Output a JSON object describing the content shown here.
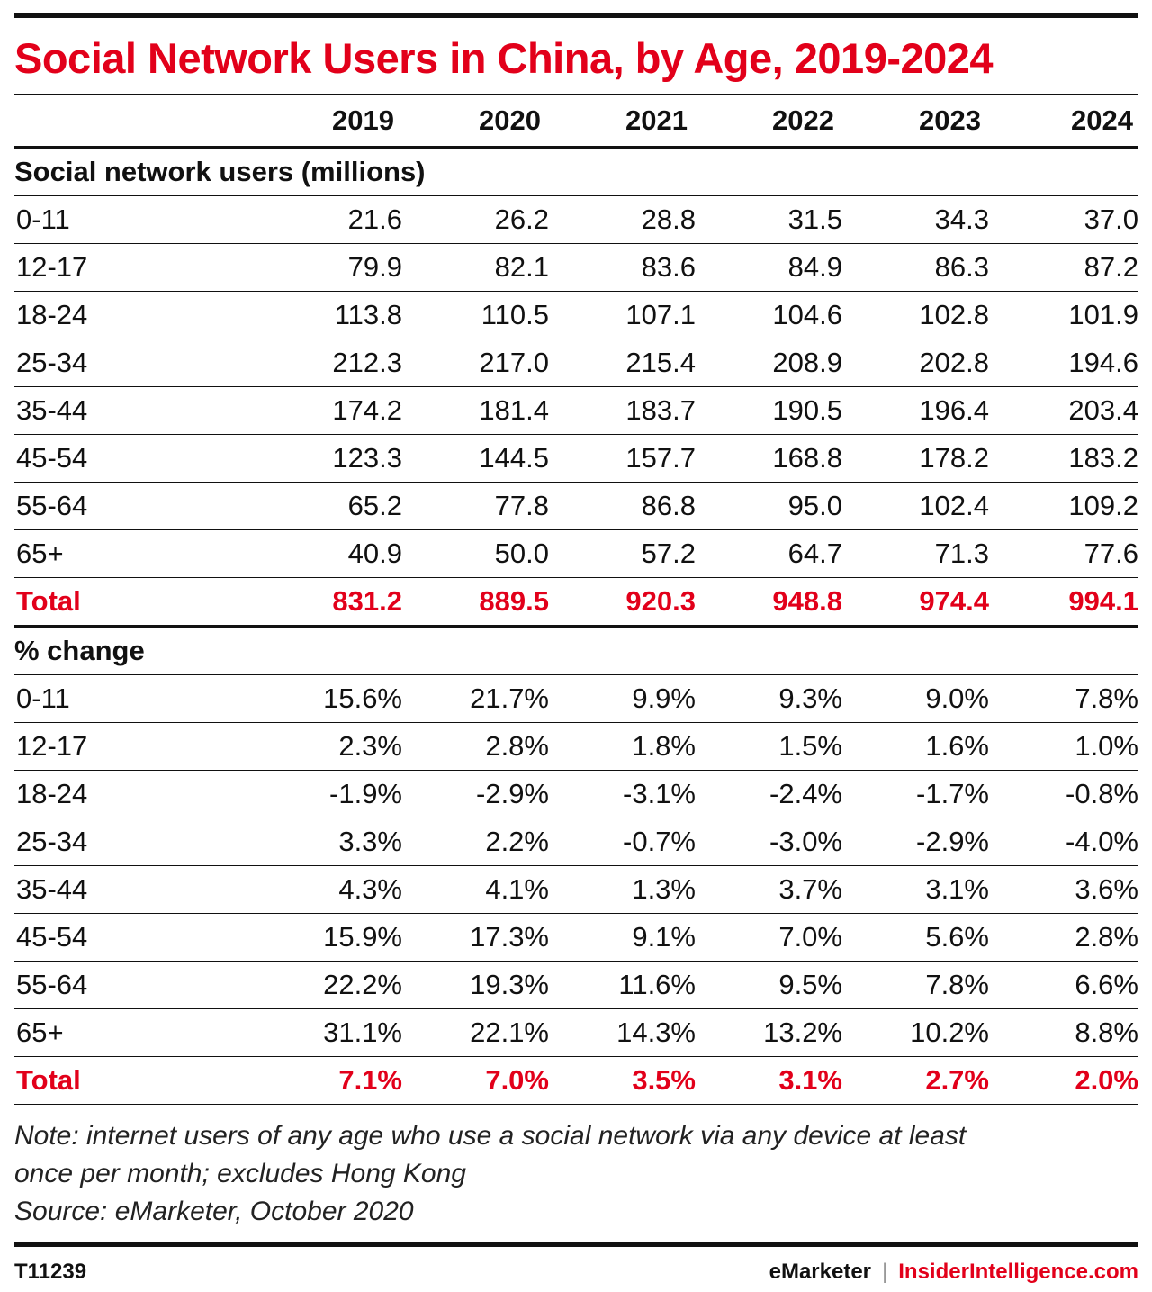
{
  "title": "Social Network Users in China, by Age, 2019-2024",
  "chart_data": {
    "type": "table",
    "title": "Social Network Users in China, by Age, 2019-2024",
    "columns": [
      "2019",
      "2020",
      "2021",
      "2022",
      "2023",
      "2024"
    ],
    "sections": [
      {
        "name": "Social network users (millions)",
        "rows": [
          {
            "label": "0-11",
            "values": [
              "21.6",
              "26.2",
              "28.8",
              "31.5",
              "34.3",
              "37.0"
            ]
          },
          {
            "label": "12-17",
            "values": [
              "79.9",
              "82.1",
              "83.6",
              "84.9",
              "86.3",
              "87.2"
            ]
          },
          {
            "label": "18-24",
            "values": [
              "113.8",
              "110.5",
              "107.1",
              "104.6",
              "102.8",
              "101.9"
            ]
          },
          {
            "label": "25-34",
            "values": [
              "212.3",
              "217.0",
              "215.4",
              "208.9",
              "202.8",
              "194.6"
            ]
          },
          {
            "label": "35-44",
            "values": [
              "174.2",
              "181.4",
              "183.7",
              "190.5",
              "196.4",
              "203.4"
            ]
          },
          {
            "label": "45-54",
            "values": [
              "123.3",
              "144.5",
              "157.7",
              "168.8",
              "178.2",
              "183.2"
            ]
          },
          {
            "label": "55-64",
            "values": [
              "65.2",
              "77.8",
              "86.8",
              "95.0",
              "102.4",
              "109.2"
            ]
          },
          {
            "label": "65+",
            "values": [
              "40.9",
              "50.0",
              "57.2",
              "64.7",
              "71.3",
              "77.6"
            ]
          }
        ],
        "total": {
          "label": "Total",
          "values": [
            "831.2",
            "889.5",
            "920.3",
            "948.8",
            "974.4",
            "994.1"
          ]
        }
      },
      {
        "name": "% change",
        "rows": [
          {
            "label": "0-11",
            "values": [
              "15.6%",
              "21.7%",
              "9.9%",
              "9.3%",
              "9.0%",
              "7.8%"
            ]
          },
          {
            "label": "12-17",
            "values": [
              "2.3%",
              "2.8%",
              "1.8%",
              "1.5%",
              "1.6%",
              "1.0%"
            ]
          },
          {
            "label": "18-24",
            "values": [
              "-1.9%",
              "-2.9%",
              "-3.1%",
              "-2.4%",
              "-1.7%",
              "-0.8%"
            ]
          },
          {
            "label": "25-34",
            "values": [
              "3.3%",
              "2.2%",
              "-0.7%",
              "-3.0%",
              "-2.9%",
              "-4.0%"
            ]
          },
          {
            "label": "35-44",
            "values": [
              "4.3%",
              "4.1%",
              "1.3%",
              "3.7%",
              "3.1%",
              "3.6%"
            ]
          },
          {
            "label": "45-54",
            "values": [
              "15.9%",
              "17.3%",
              "9.1%",
              "7.0%",
              "5.6%",
              "2.8%"
            ]
          },
          {
            "label": "55-64",
            "values": [
              "22.2%",
              "19.3%",
              "11.6%",
              "9.5%",
              "7.8%",
              "6.6%"
            ]
          },
          {
            "label": "65+",
            "values": [
              "31.1%",
              "22.1%",
              "14.3%",
              "13.2%",
              "10.2%",
              "8.8%"
            ]
          }
        ],
        "total": {
          "label": "Total",
          "values": [
            "7.1%",
            "7.0%",
            "3.5%",
            "3.1%",
            "2.7%",
            "2.0%"
          ]
        }
      }
    ]
  },
  "note_line1": "Note: internet users of any age who use a social network via any device at least",
  "note_line2": "once per month; excludes Hong Kong",
  "source": "Source: eMarketer, October 2020",
  "footer": {
    "code": "T11239",
    "brand": "eMarketer",
    "separator": "|",
    "site": "InsiderIntelligence.com"
  },
  "colors": {
    "accent": "#e2001a",
    "text": "#111111"
  }
}
